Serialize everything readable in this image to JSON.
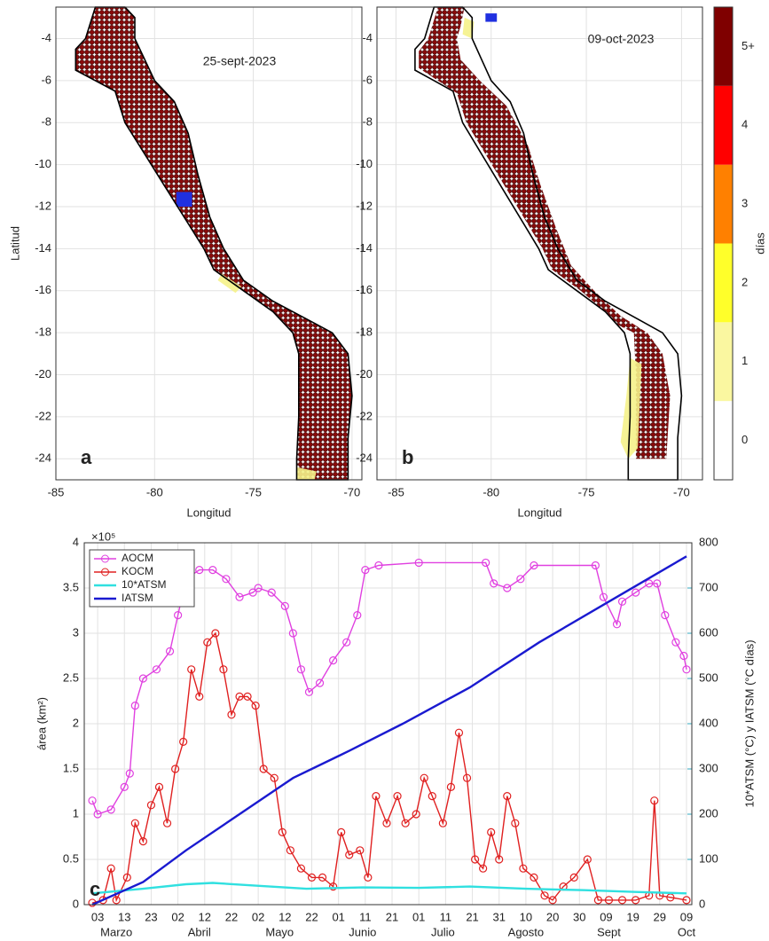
{
  "chart_data": [
    {
      "type": "map",
      "xlim": [
        -85,
        -69.5
      ],
      "ylim": [
        -25,
        -2.5
      ],
      "xticks": [
        -85,
        -80,
        -75,
        -70
      ],
      "yticks": [
        -24,
        -22,
        -20,
        -18,
        -16,
        -14,
        -12,
        -10,
        -8,
        -6,
        -4
      ],
      "xlabel": "Longitud",
      "ylabel": "Latitud",
      "annotation": "25-sept-2023",
      "panel": "a",
      "grid": true
    },
    {
      "type": "map",
      "xlim": [
        -86,
        -68.9
      ],
      "ylim": [
        -25,
        -2.5
      ],
      "xticks": [
        -85,
        -80,
        -75,
        -70
      ],
      "yticks": [
        -24,
        -22,
        -20,
        -18,
        -16,
        -14,
        -12,
        -10,
        -8,
        -6,
        -4
      ],
      "xlabel": "Longitud",
      "annotation": "09-oct-2023",
      "panel": "b",
      "grid": true
    },
    {
      "type": "colorbar",
      "label": "días",
      "categories": [
        "0",
        "1",
        "2",
        "3",
        "4",
        "5+"
      ],
      "colors": [
        "#ffffff",
        "#faf7a0",
        "#ffff2a",
        "#ff8000",
        "#ff0000",
        "#7f0000"
      ]
    },
    {
      "type": "line",
      "ylabel": "área (km²)",
      "y_exponent": "×10⁵",
      "y2label": "10*ATSM (°C) y IATSM (°C días)",
      "panel": "c",
      "legend": "upper left",
      "grid": true,
      "xlim": [
        "02-26",
        "10-11"
      ],
      "xticks": [
        {
          "value": "03-03",
          "label": "03"
        },
        {
          "value": "03-13",
          "label": "13"
        },
        {
          "value": "03-23",
          "label": "23"
        },
        {
          "value": "04-02",
          "label": "02"
        },
        {
          "value": "04-12",
          "label": "12"
        },
        {
          "value": "04-22",
          "label": "22"
        },
        {
          "value": "05-02",
          "label": "02"
        },
        {
          "value": "05-12",
          "label": "12"
        },
        {
          "value": "05-22",
          "label": "22"
        },
        {
          "value": "06-01",
          "label": "01"
        },
        {
          "value": "06-11",
          "label": "11"
        },
        {
          "value": "06-21",
          "label": "21"
        },
        {
          "value": "07-01",
          "label": "01"
        },
        {
          "value": "07-11",
          "label": "11"
        },
        {
          "value": "07-21",
          "label": "21"
        },
        {
          "value": "07-31",
          "label": "31"
        },
        {
          "value": "08-10",
          "label": "10"
        },
        {
          "value": "08-20",
          "label": "20"
        },
        {
          "value": "08-30",
          "label": "30"
        },
        {
          "value": "09-09",
          "label": "09"
        },
        {
          "value": "09-19",
          "label": "19"
        },
        {
          "value": "09-29",
          "label": "29"
        },
        {
          "value": "10-09",
          "label": "09"
        }
      ],
      "months": [
        "Marzo",
        "Abril",
        "Mayo",
        "Junio",
        "Julio",
        "Agosto",
        "Sept",
        "Oct"
      ],
      "ylim": [
        0,
        4
      ],
      "yticks": [
        0,
        0.5,
        1,
        1.5,
        2,
        2.5,
        3,
        3.5,
        4
      ],
      "y2lim": [
        0,
        800
      ],
      "y2ticks": [
        0,
        100,
        200,
        300,
        400,
        500,
        600,
        700,
        800
      ],
      "series": [
        {
          "name": "AOCM",
          "color": "#e040e0",
          "marker": true,
          "x": [
            "03-01",
            "03-03",
            "03-08",
            "03-13",
            "03-15",
            "03-17",
            "03-20",
            "03-25",
            "03-30",
            "04-02",
            "04-05",
            "04-10",
            "04-15",
            "04-20",
            "04-25",
            "04-30",
            "05-02",
            "05-07",
            "05-12",
            "05-15",
            "05-18",
            "05-21",
            "05-25",
            "05-30",
            "06-04",
            "06-08",
            "06-11",
            "06-16",
            "07-01",
            "07-26",
            "07-29",
            "08-03",
            "08-08",
            "08-13",
            "09-05",
            "09-08",
            "09-13",
            "09-15",
            "09-20",
            "09-25",
            "09-28",
            "10-01",
            "10-05",
            "10-08",
            "10-09"
          ],
          "values": [
            1.15,
            1.0,
            1.05,
            1.3,
            1.45,
            2.2,
            2.5,
            2.6,
            2.8,
            3.2,
            3.6,
            3.7,
            3.7,
            3.6,
            3.4,
            3.45,
            3.5,
            3.45,
            3.3,
            3.0,
            2.6,
            2.35,
            2.45,
            2.7,
            2.9,
            3.2,
            3.7,
            3.75,
            3.78,
            3.78,
            3.55,
            3.5,
            3.6,
            3.75,
            3.75,
            3.4,
            3.1,
            3.35,
            3.45,
            3.55,
            3.55,
            3.2,
            2.9,
            2.75,
            2.6
          ]
        },
        {
          "name": "KOCM",
          "color": "#e02020",
          "marker": true,
          "x": [
            "03-01",
            "03-05",
            "03-08",
            "03-10",
            "03-14",
            "03-17",
            "03-20",
            "03-23",
            "03-26",
            "03-29",
            "04-01",
            "04-04",
            "04-07",
            "04-10",
            "04-13",
            "04-16",
            "04-19",
            "04-22",
            "04-25",
            "04-28",
            "05-01",
            "05-04",
            "05-08",
            "05-11",
            "05-14",
            "05-18",
            "05-22",
            "05-26",
            "05-30",
            "06-02",
            "06-05",
            "06-09",
            "06-12",
            "06-15",
            "06-19",
            "06-23",
            "06-26",
            "06-30",
            "07-03",
            "07-06",
            "07-10",
            "07-13",
            "07-16",
            "07-19",
            "07-22",
            "07-25",
            "07-28",
            "07-31",
            "08-03",
            "08-06",
            "08-09",
            "08-13",
            "08-17",
            "08-20",
            "08-24",
            "08-28",
            "09-02",
            "09-06",
            "09-10",
            "09-15",
            "09-20",
            "09-25",
            "09-27",
            "09-29",
            "10-03",
            "10-09"
          ],
          "values": [
            0.02,
            0.05,
            0.4,
            0.05,
            0.3,
            0.9,
            0.7,
            1.1,
            1.3,
            0.9,
            1.5,
            1.8,
            2.6,
            2.3,
            2.9,
            3.0,
            2.6,
            2.1,
            2.3,
            2.3,
            2.2,
            1.5,
            1.4,
            0.8,
            0.6,
            0.4,
            0.3,
            0.3,
            0.2,
            0.8,
            0.55,
            0.6,
            0.3,
            1.2,
            0.9,
            1.2,
            0.9,
            1.0,
            1.4,
            1.2,
            0.9,
            1.3,
            1.9,
            1.4,
            0.5,
            0.4,
            0.8,
            0.5,
            1.2,
            0.9,
            0.4,
            0.3,
            0.1,
            0.05,
            0.2,
            0.3,
            0.5,
            0.05,
            0.05,
            0.05,
            0.05,
            0.1,
            1.15,
            0.1,
            0.08,
            0.05
          ]
        },
        {
          "name": "10*ATSM",
          "color": "#30e0e0",
          "marker": false,
          "axis": "y2",
          "x": [
            "03-01",
            "03-20",
            "04-05",
            "04-15",
            "05-01",
            "05-20",
            "06-10",
            "07-01",
            "07-20",
            "08-10",
            "09-01",
            "09-20",
            "10-09"
          ],
          "values": [
            25,
            35,
            45,
            48,
            42,
            35,
            38,
            37,
            40,
            35,
            32,
            28,
            25
          ]
        },
        {
          "name": "IATSM",
          "color": "#1a1ad0",
          "marker": false,
          "axis": "y2",
          "x": [
            "03-01",
            "03-20",
            "04-05",
            "04-25",
            "05-15",
            "06-05",
            "06-25",
            "07-20",
            "08-15",
            "09-10",
            "10-09"
          ],
          "values": [
            0,
            50,
            120,
            200,
            280,
            340,
            400,
            480,
            580,
            670,
            770
          ]
        }
      ]
    }
  ]
}
